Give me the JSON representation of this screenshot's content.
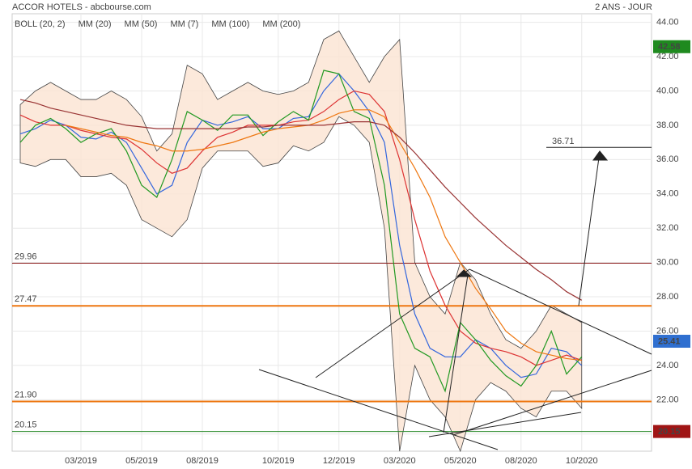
{
  "chart_data": {
    "type": "line",
    "title": "ACCOR HOTELS - abcbourse.com",
    "subtitle": "2 ANS - JOUR",
    "categories": [
      null,
      null,
      null,
      null,
      "03/2019",
      null,
      null,
      null,
      "05/2019",
      null,
      null,
      null,
      "08/2019",
      null,
      null,
      null,
      null,
      "10/2019",
      null,
      null,
      null,
      "12/2019",
      null,
      null,
      null,
      "03/2020",
      null,
      null,
      null,
      "05/2020",
      null,
      null,
      null,
      "08/2020",
      null,
      null,
      null,
      "10/2020"
    ],
    "ylim": [
      19,
      44.5
    ],
    "yticks": [
      {
        "value": 20,
        "label": "20.00"
      },
      {
        "value": 22,
        "label": "22.00"
      },
      {
        "value": 24,
        "label": "24.00"
      },
      {
        "value": 26,
        "label": "26.00"
      },
      {
        "value": 28,
        "label": "28.00"
      },
      {
        "value": 30,
        "label": "30.00"
      },
      {
        "value": 32,
        "label": "32.00"
      },
      {
        "value": 34,
        "label": "34.00"
      },
      {
        "value": 36,
        "label": "36.00"
      },
      {
        "value": 38,
        "label": "38.00"
      },
      {
        "value": 40,
        "label": "40.00"
      },
      {
        "value": 42,
        "label": "42.00"
      },
      {
        "value": 44,
        "label": "44.00"
      }
    ],
    "grid": true,
    "bands": [
      {
        "name": "BOLL (20, 2)",
        "color": "#444444",
        "upper": [
          39.2,
          40,
          40.5,
          40,
          39.5,
          39.5,
          40,
          39.5,
          38.5,
          36.5,
          37.5,
          41.5,
          41,
          39.5,
          40,
          40.5,
          40,
          39.8,
          40,
          40.5,
          43,
          43.5,
          42,
          40.5,
          42,
          43,
          30,
          28,
          27,
          30,
          29,
          27,
          25.5,
          25,
          26,
          27.5,
          27,
          26.5
        ],
        "lower": [
          35.8,
          35.6,
          36,
          36,
          35,
          35,
          35.2,
          34.5,
          32.5,
          32,
          31.5,
          32.5,
          35.5,
          36.5,
          36.5,
          36.5,
          35.6,
          35.8,
          36.8,
          36.5,
          37,
          38.5,
          38,
          37,
          32,
          19,
          24,
          22,
          21,
          19,
          22,
          23,
          22.5,
          21.5,
          21,
          22.5,
          22.5,
          21.5
        ]
      }
    ],
    "series": [
      {
        "name": "MM (20)",
        "color": "#3366dd",
        "values": [
          37.5,
          37.8,
          38.3,
          38,
          37.3,
          37.2,
          37.6,
          37,
          35.5,
          34,
          34.5,
          37,
          38.3,
          38,
          38.2,
          38.5,
          37.8,
          37.8,
          38.4,
          38.5,
          40,
          41,
          40,
          38.8,
          37,
          31,
          27,
          25,
          24.5,
          24.5,
          25.5,
          25,
          24,
          23.3,
          23.5,
          25,
          24.8,
          24
        ]
      },
      {
        "name": "MM (50)",
        "color": "#dd3333",
        "values": [
          38.6,
          38.2,
          38,
          38,
          37.7,
          37.5,
          37.3,
          37.2,
          36.6,
          35.8,
          35.2,
          35.5,
          36.5,
          37.3,
          37.6,
          38,
          38,
          38,
          38.2,
          38.3,
          38.8,
          39.5,
          40,
          39.8,
          38.8,
          36,
          32.5,
          29.5,
          27.5,
          26,
          25.3,
          25,
          24.8,
          24.5,
          24,
          24.3,
          24.6,
          24.3
        ]
      },
      {
        "name": "MM (7)",
        "color": "#229922",
        "values": [
          37,
          38,
          38.4,
          37.8,
          37,
          37.5,
          37.8,
          36.5,
          34.5,
          33.8,
          36,
          38.8,
          38.3,
          37.7,
          38.6,
          38.6,
          37.4,
          38.2,
          38.8,
          38.3,
          41.2,
          41,
          38.8,
          38.4,
          34.5,
          27,
          25,
          24.5,
          22.5,
          26.5,
          25.5,
          24.3,
          23.4,
          22.8,
          24,
          26,
          23.5,
          24.5
        ]
      },
      {
        "name": "MM (100)",
        "color": "#ee7711",
        "values": [
          null,
          null,
          null,
          38,
          37.8,
          37.6,
          37.4,
          37.3,
          37,
          36.8,
          36.5,
          36.5,
          36.6,
          36.8,
          37,
          37.3,
          37.6,
          37.8,
          37.9,
          38,
          38.3,
          38.7,
          38.9,
          38.9,
          38.5,
          37,
          35.5,
          33.8,
          31.5,
          30,
          28.5,
          27.3,
          26,
          25.3,
          24.8,
          24.6,
          24.4,
          24.3
        ]
      },
      {
        "name": "MM (200)",
        "color": "#993333",
        "values": [
          39.5,
          39.3,
          39,
          38.8,
          38.6,
          38.4,
          38.2,
          38,
          37.9,
          37.8,
          37.8,
          37.8,
          37.8,
          37.8,
          37.8,
          37.9,
          37.9,
          38,
          38,
          38,
          38,
          38.1,
          38.2,
          38.2,
          38,
          37.3,
          36.4,
          35.4,
          34.4,
          33.5,
          32.6,
          31.8,
          31,
          30.3,
          29.6,
          29,
          28.3,
          27.8
        ]
      }
    ],
    "levels": [
      {
        "value": 29.96,
        "label": "29.96",
        "color": "#8b1a1a"
      },
      {
        "value": 27.47,
        "label": "27.47",
        "color": "#ee7711"
      },
      {
        "value": 21.9,
        "label": "21.90",
        "color": "#ee7711"
      },
      {
        "value": 20.15,
        "label": "20.15",
        "color": "#2a8a2a"
      }
    ],
    "target": 36.71,
    "badges": [
      {
        "value": 42.58,
        "label": "42.58",
        "color": "#1f8a1f"
      },
      {
        "value": 25.41,
        "label": "25.41",
        "color": "#2f6fd0"
      },
      {
        "value": 20.15,
        "label": "20.15",
        "color": "#a01515"
      }
    ]
  }
}
